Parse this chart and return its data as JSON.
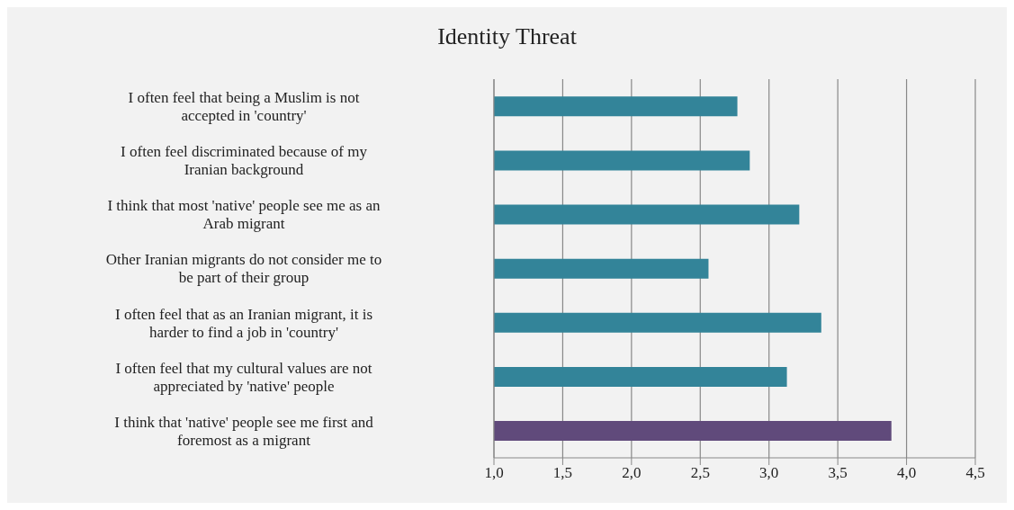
{
  "chart_data": {
    "type": "bar",
    "orientation": "horizontal",
    "title": "Identity Threat",
    "categories": [
      "I often feel that being a Muslim is not accepted in 'country'",
      "I often feel discriminated because of my Iranian background",
      "I think that most 'native' people see me as an Arab migrant",
      "Other Iranian migrants do not consider me to be part of their group",
      "I often feel that as an Iranian migrant, it is harder to find a job in 'country'",
      "I often feel that my cultural values are not appreciated by 'native' people",
      "I think that 'native' people see me first and foremost as a migrant"
    ],
    "values": [
      2.77,
      2.86,
      3.22,
      2.56,
      3.38,
      3.13,
      3.89
    ],
    "colors": [
      "#338499",
      "#338499",
      "#338499",
      "#338499",
      "#338499",
      "#338499",
      "#604a7b"
    ],
    "xlim": [
      1.0,
      4.5
    ],
    "xticks": [
      {
        "value": 1.0,
        "label": "1,0"
      },
      {
        "value": 1.5,
        "label": "1,5"
      },
      {
        "value": 2.0,
        "label": "2,0"
      },
      {
        "value": 2.5,
        "label": "2,5"
      },
      {
        "value": 3.0,
        "label": "3,0"
      },
      {
        "value": 3.5,
        "label": "3,5"
      },
      {
        "value": 4.0,
        "label": "4,0"
      },
      {
        "value": 4.5,
        "label": "4,5"
      }
    ],
    "grid": "x"
  }
}
